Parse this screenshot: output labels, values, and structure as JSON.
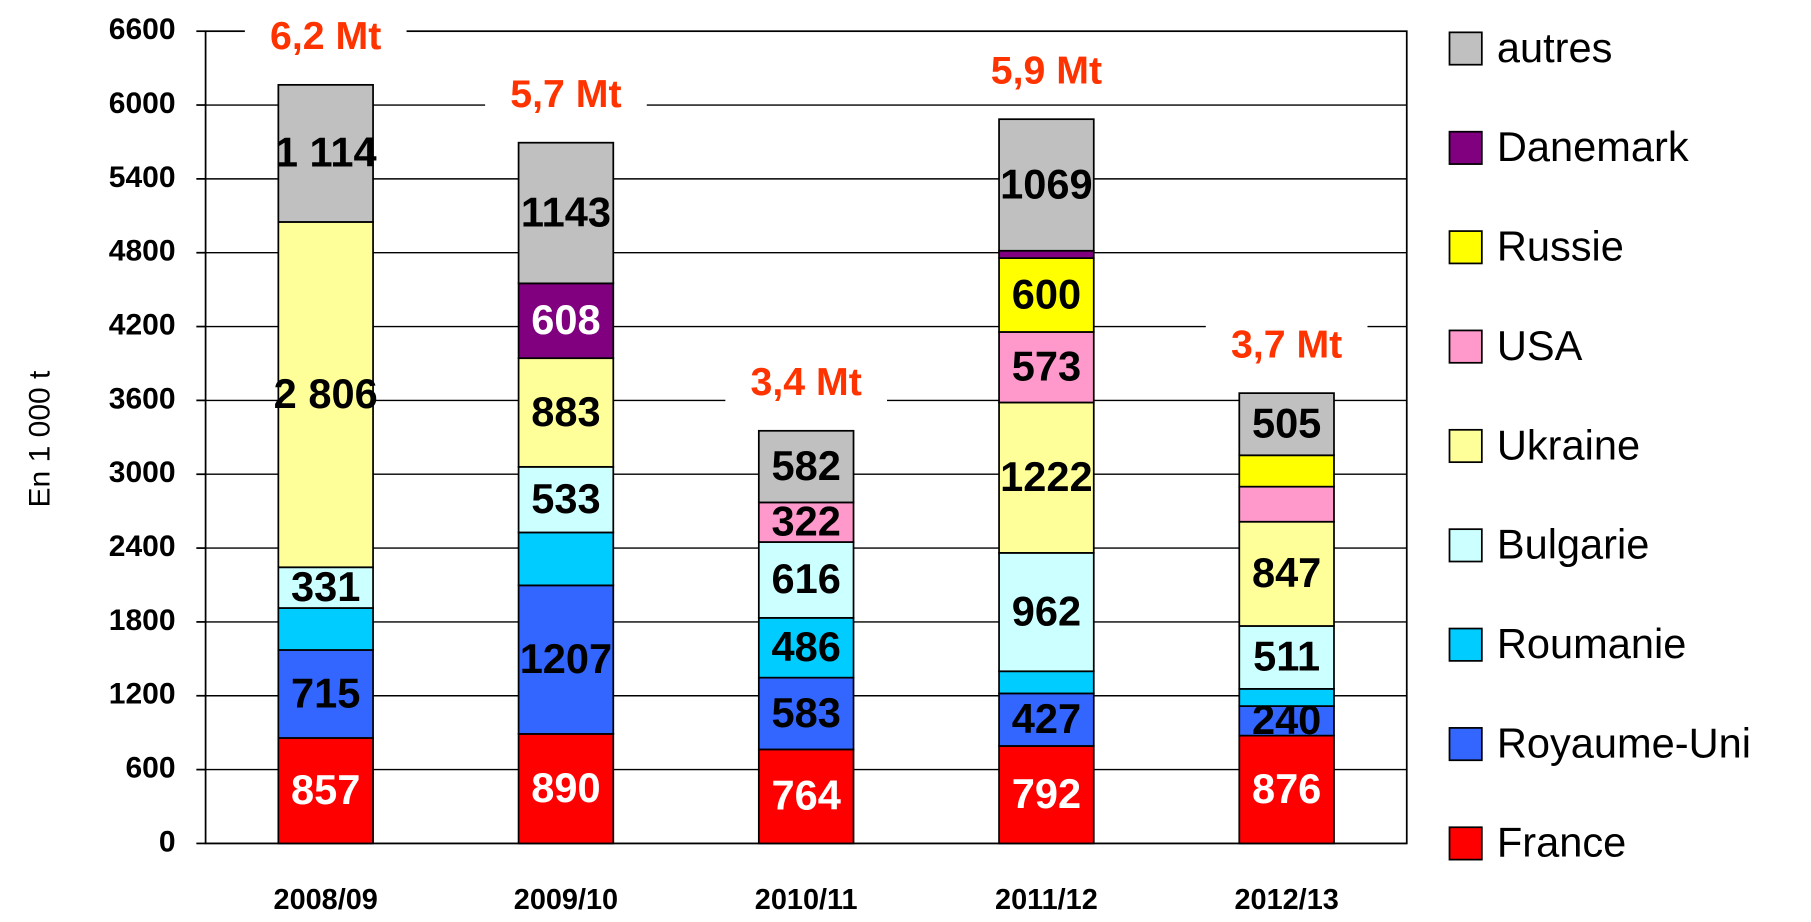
{
  "chart_data": {
    "type": "stacked_bar",
    "y_label": "En 1 000 t",
    "categories": [
      "2008/09",
      "2009/10",
      "2010/11",
      "2011/12",
      "2012/13"
    ],
    "totals_labels": [
      "6,2 Mt",
      "5,7 Mt",
      "3,4 Mt",
      "5,9 Mt",
      "3,7 Mt"
    ],
    "series": [
      {
        "name": "France",
        "color": "#ff0000",
        "label_color": "#ffffff",
        "values": [
          857,
          890,
          764,
          792,
          876
        ]
      },
      {
        "name": "Royaume-Uni",
        "color": "#3366ff",
        "label_color": "#000000",
        "values": [
          715,
          1207,
          583,
          427,
          240
        ]
      },
      {
        "name": "Roumanie",
        "color": "#00ccff",
        "label_color": "#000000",
        "values": [
          341,
          430,
          486,
          180,
          140
        ],
        "value_labels": [
          null,
          null,
          "486",
          null,
          null
        ]
      },
      {
        "name": "Bulgarie",
        "color": "#ccffff",
        "label_color": "#000000",
        "values": [
          331,
          533,
          616,
          962,
          511
        ]
      },
      {
        "name": "Ukraine",
        "color": "#ffff99",
        "label_color": "#000000",
        "values": [
          2806,
          883,
          0,
          1222,
          847
        ],
        "value_labels": [
          "2 806",
          "883",
          null,
          "1222",
          "847"
        ]
      },
      {
        "name": "USA",
        "color": "#ff99cc",
        "label_color": "#000000",
        "values": [
          0,
          0,
          322,
          573,
          285
        ],
        "value_labels": [
          null,
          null,
          "322",
          "573",
          null
        ]
      },
      {
        "name": "Russie",
        "color": "#ffff00",
        "label_color": "#000000",
        "values": [
          0,
          0,
          0,
          600,
          255
        ],
        "value_labels": [
          null,
          null,
          null,
          "600",
          null
        ]
      },
      {
        "name": "Danemark",
        "color": "#800080",
        "label_color": "#ffffff",
        "values": [
          0,
          608,
          0,
          60,
          0
        ],
        "value_labels": [
          null,
          "608",
          null,
          null,
          null
        ]
      },
      {
        "name": "autres",
        "color": "#c0c0c0",
        "label_color": "#000000",
        "values": [
          1114,
          1143,
          582,
          1069,
          505
        ],
        "value_labels": [
          "1 114",
          "1143",
          "582",
          "1069",
          "505"
        ]
      }
    ],
    "ylim": [
      0,
      6600
    ],
    "yticks": [
      0,
      600,
      1200,
      1800,
      2400,
      3000,
      3600,
      4200,
      4800,
      5400,
      6000,
      6600
    ],
    "grid": true
  }
}
